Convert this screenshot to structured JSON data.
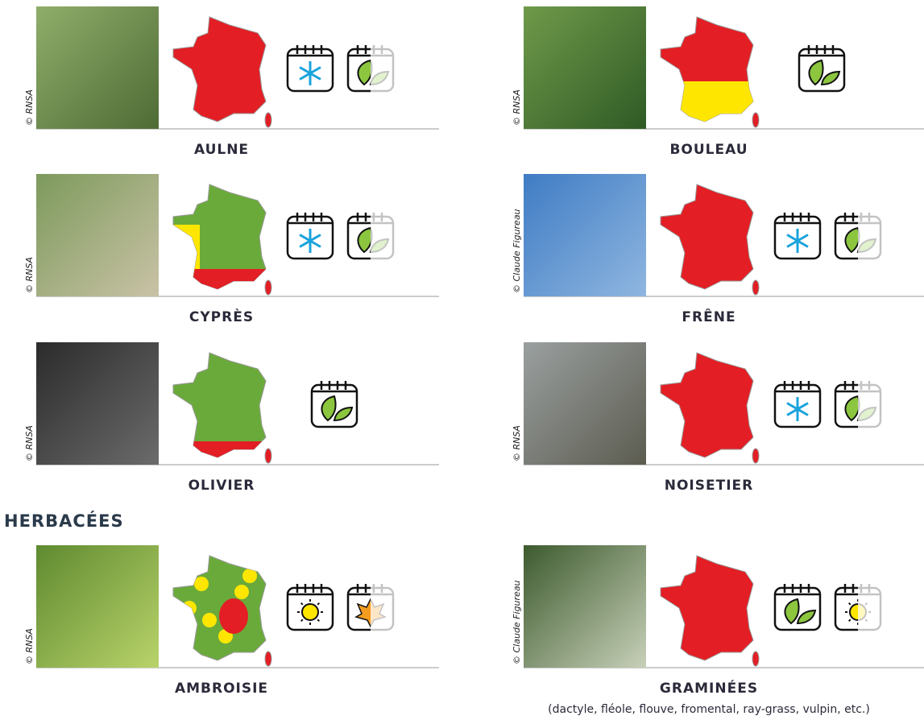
{
  "plants": [
    {
      "name": "AULNE",
      "credit": "© RNSA"
    },
    {
      "name": "BOULEAU",
      "credit": "© RNSA"
    },
    {
      "name": "CYPRÈS",
      "credit": "© RNSA"
    },
    {
      "name": "FRÊNE",
      "credit": "© Claude Figureau"
    },
    {
      "name": "OLIVIER",
      "credit": "© RNSA"
    },
    {
      "name": "NOISETIER",
      "credit": "© RNSA"
    },
    {
      "name": "AMBROISIE",
      "credit": "© RNSA"
    },
    {
      "name": "GRAMINÉES",
      "credit": "© Claude Figureau"
    }
  ],
  "heading": "HERBACÉES",
  "note": "(dactyle, fléole, flouve, fromental, ray-grass, vulpin, etc.)"
}
